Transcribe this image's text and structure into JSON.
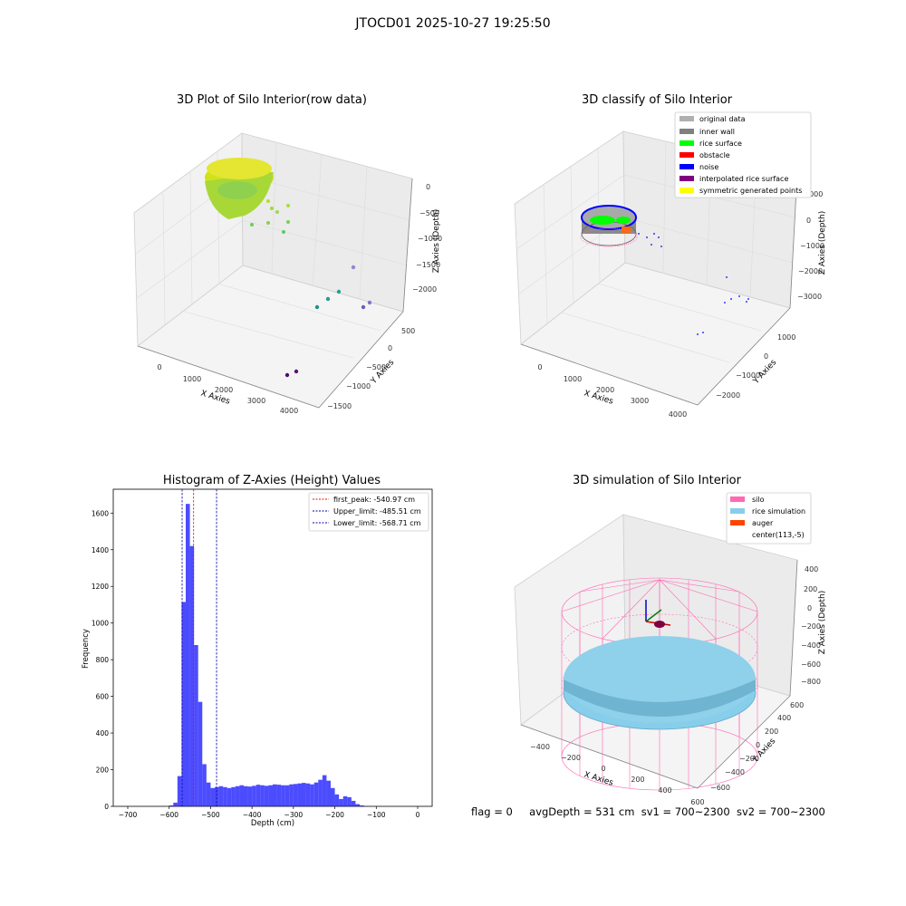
{
  "suptitle": "JTOCD01 2025-10-27 19:25:50",
  "footer": {
    "flag": "flag = 0",
    "avg": "avgDepth = 531 cm",
    "sv1": "sv1 = 700~2300",
    "sv2": "sv2 = 700~2300"
  },
  "colors": {
    "original_data": "#b0b0b0",
    "inner_wall": "#808080",
    "rice_surface": "#00ff00",
    "obstacle": "#ff0000",
    "noise": "#0000ff",
    "interpolated": "#800080",
    "symmetric": "#ffff00",
    "silo": "#ff69b4",
    "rice_sim": "#87ceeb",
    "auger": "#ff4500",
    "hist": "#0000ff"
  },
  "chart_data": [
    {
      "type": "scatter3d",
      "title": "3D Plot of Silo Interior(row data)",
      "xlabel": "X Axies",
      "ylabel": "Y Axies",
      "zlabel": "Z Axies (Depth)",
      "xticks": [
        "0",
        "1000",
        "2000",
        "3000",
        "4000"
      ],
      "yticks": [
        "500",
        "0",
        "−500",
        "−1000",
        "−1500"
      ],
      "zticks": [
        "0",
        "−500",
        "−1000",
        "−1500",
        "−2000"
      ]
    },
    {
      "type": "scatter3d",
      "title": "3D classify of Silo Interior",
      "xlabel": "X Axies",
      "ylabel": "Y Axies",
      "zlabel": "Z Axies (Depth)",
      "xticks": [
        "0",
        "1000",
        "2000",
        "3000",
        "4000"
      ],
      "yticks": [
        "1000",
        "0",
        "−1000",
        "−2000"
      ],
      "zticks": [
        "1000",
        "0",
        "−1000",
        "−2000",
        "−3000"
      ],
      "legend": [
        "original data",
        "inner wall",
        "rice surface",
        "obstacle",
        "noise",
        "interpolated rice surface",
        "symmetric generated points"
      ],
      "legend_position": "top-right"
    },
    {
      "type": "bar",
      "title": "Histogram of Z-Axies (Height) Values",
      "xlabel": "Depth (cm)",
      "ylabel": "Frequency",
      "xlim": [
        -735,
        35
      ],
      "ylim": [
        0,
        1730
      ],
      "xticks": [
        -700,
        -600,
        -500,
        -400,
        -300,
        -200,
        -100,
        0
      ],
      "yticks": [
        0,
        200,
        400,
        600,
        800,
        1000,
        1200,
        1400,
        1600
      ],
      "bin_width": 10,
      "bins_start": [
        -600,
        -590,
        -580,
        -570,
        -560,
        -550,
        -540,
        -530,
        -520,
        -510,
        -500,
        -490,
        -480,
        -470,
        -460,
        -450,
        -440,
        -430,
        -420,
        -410,
        -400,
        -390,
        -380,
        -370,
        -360,
        -350,
        -340,
        -330,
        -320,
        -310,
        -300,
        -290,
        -280,
        -270,
        -260,
        -250,
        -240,
        -230,
        -220,
        -210,
        -200,
        -190,
        -180,
        -170,
        -160,
        -150,
        -140,
        -130,
        -120,
        -110,
        -100,
        -90,
        -80,
        -70,
        -60,
        -50,
        -40,
        -30,
        -20,
        -10
      ],
      "values": [
        5,
        20,
        165,
        1115,
        1650,
        1420,
        880,
        570,
        230,
        130,
        100,
        105,
        110,
        105,
        100,
        105,
        110,
        115,
        110,
        108,
        112,
        118,
        115,
        112,
        115,
        120,
        118,
        115,
        115,
        120,
        122,
        125,
        128,
        125,
        120,
        130,
        145,
        170,
        140,
        100,
        65,
        40,
        55,
        50,
        30,
        12,
        5,
        2,
        0,
        0,
        0,
        0,
        0,
        0,
        0,
        0,
        0,
        0,
        0,
        0
      ],
      "vlines": [
        {
          "name": "first_peak: -540.97 cm",
          "x": -540.97,
          "color": "#ff0000"
        },
        {
          "name": "Upper_limit: -485.51 cm",
          "x": -485.51,
          "color": "#0000aa"
        },
        {
          "name": "Lower_limit: -568.71 cm",
          "x": -568.71,
          "color": "#0000aa"
        }
      ],
      "legend_position": "top-right"
    },
    {
      "type": "surface3d",
      "title": "3D simulation of Silo Interior",
      "xlabel": "X Axies",
      "ylabel": "Y Axies",
      "zlabel": "Z Axies (Depth)",
      "xticks": [
        "−400",
        "−200",
        "0",
        "200",
        "400",
        "600"
      ],
      "yticks": [
        "600",
        "400",
        "200",
        "0",
        "−200",
        "−400",
        "−600"
      ],
      "zticks": [
        "400",
        "200",
        "0",
        "−200",
        "−400",
        "−600",
        "−800"
      ],
      "legend": [
        "silo",
        "rice simulation",
        "auger",
        "center(113,-5)"
      ],
      "legend_position": "top-right"
    }
  ]
}
